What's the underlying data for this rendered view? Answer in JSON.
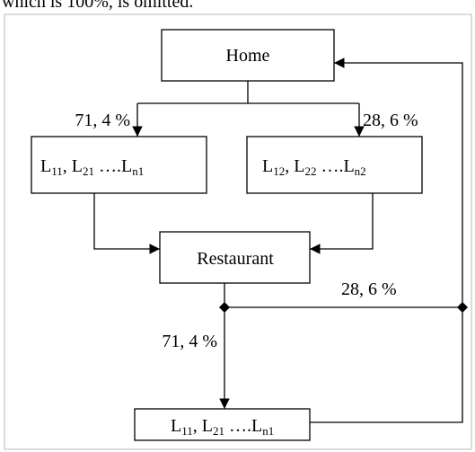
{
  "caption": "which is 100%, is omitted.",
  "nodes": [
    {
      "label": "Home"
    },
    {
      "label_parts": [
        "L",
        "11",
        ", L",
        "21",
        " ….L",
        "n1"
      ]
    },
    {
      "label_parts": [
        "L",
        "12",
        ", L",
        "22",
        " ….L",
        "n2"
      ]
    },
    {
      "label": "Restaurant"
    },
    {
      "label_parts": [
        "L",
        "11",
        ", L",
        "21",
        " ….L",
        "n1"
      ]
    }
  ],
  "edges": [
    {
      "label": "71, 4 %"
    },
    {
      "label": "28, 6 %"
    },
    {
      "label": "28, 6 %"
    },
    {
      "label": "71, 4 %"
    }
  ]
}
